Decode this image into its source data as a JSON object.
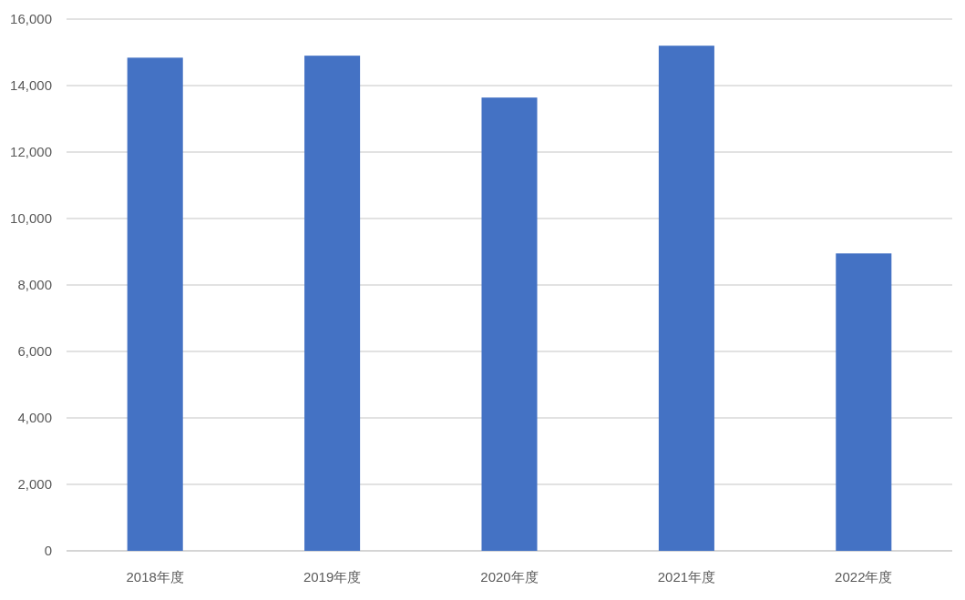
{
  "chart_data": {
    "type": "bar",
    "categories": [
      "2018年度",
      "2019年度",
      "2020年度",
      "2021年度",
      "2022年度"
    ],
    "values": [
      14840,
      14900,
      13640,
      15200,
      8950
    ],
    "color": "#4472c4",
    "ylim": [
      0,
      16000
    ],
    "yticks": [
      0,
      {
        "value": 2000,
        "label": "2,000"
      },
      {
        "value": 4000,
        "label": "4,000"
      },
      {
        "value": 6000,
        "label": "6,000"
      },
      {
        "value": 8000,
        "label": "8,000"
      },
      {
        "value": 10000,
        "label": "10,000"
      },
      {
        "value": 12000,
        "label": "12,000"
      },
      {
        "value": 14000,
        "label": "14,000"
      },
      {
        "value": 16000,
        "label": "16,000"
      }
    ],
    "grid": "y"
  }
}
